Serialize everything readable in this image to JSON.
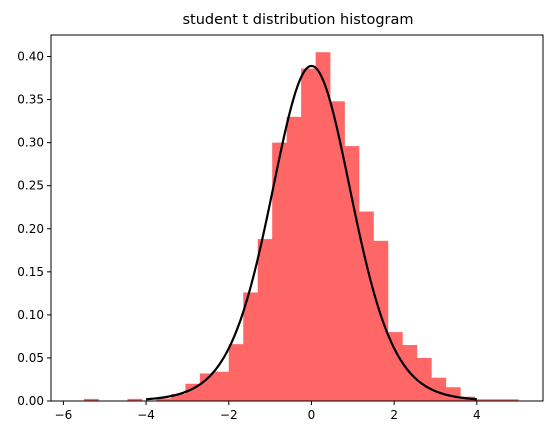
{
  "chart_data": {
    "type": "bar",
    "title": "student t distribution histogram",
    "xlabel": "",
    "ylabel": "",
    "xlim": [
      -6.3,
      5.6
    ],
    "ylim": [
      0,
      0.425
    ],
    "xticks": [
      -6,
      -4,
      -2,
      0,
      2,
      4
    ],
    "xtick_labels": [
      "−6",
      "−4",
      "−2",
      "0",
      "2",
      "4"
    ],
    "yticks": [
      0.0,
      0.05,
      0.1,
      0.15,
      0.2,
      0.25,
      0.3,
      0.35,
      0.4
    ],
    "ytick_labels": [
      "0.00",
      "0.05",
      "0.10",
      "0.15",
      "0.20",
      "0.25",
      "0.30",
      "0.35",
      "0.40"
    ],
    "grid": false,
    "histogram": {
      "color": "#ff6666",
      "bin_width": 0.35,
      "bins": [
        {
          "x0": -5.5,
          "x1": -5.15,
          "value": 0.0025
        },
        {
          "x0": -5.15,
          "x1": -4.8,
          "value": 0
        },
        {
          "x0": -4.8,
          "x1": -4.45,
          "value": 0
        },
        {
          "x0": -4.45,
          "x1": -4.1,
          "value": 0.0025
        },
        {
          "x0": -4.1,
          "x1": -3.75,
          "value": 0
        },
        {
          "x0": -3.75,
          "x1": -3.4,
          "value": 0.003
        },
        {
          "x0": -3.4,
          "x1": -3.05,
          "value": 0.008
        },
        {
          "x0": -3.05,
          "x1": -2.7,
          "value": 0.02
        },
        {
          "x0": -2.7,
          "x1": -2.35,
          "value": 0.032
        },
        {
          "x0": -2.35,
          "x1": -2.0,
          "value": 0.034
        },
        {
          "x0": -2.0,
          "x1": -1.65,
          "value": 0.066
        },
        {
          "x0": -1.65,
          "x1": -1.3,
          "value": 0.126
        },
        {
          "x0": -1.3,
          "x1": -0.95,
          "value": 0.188
        },
        {
          "x0": -0.95,
          "x1": -0.6,
          "value": 0.3
        },
        {
          "x0": -0.6,
          "x1": -0.25,
          "value": 0.33
        },
        {
          "x0": -0.25,
          "x1": 0.1,
          "value": 0.386
        },
        {
          "x0": 0.1,
          "x1": 0.45,
          "value": 0.405
        },
        {
          "x0": 0.45,
          "x1": 0.8,
          "value": 0.348
        },
        {
          "x0": 0.8,
          "x1": 1.15,
          "value": 0.296
        },
        {
          "x0": 1.15,
          "x1": 1.5,
          "value": 0.22
        },
        {
          "x0": 1.5,
          "x1": 1.85,
          "value": 0.186
        },
        {
          "x0": 1.85,
          "x1": 2.2,
          "value": 0.08
        },
        {
          "x0": 2.2,
          "x1": 2.55,
          "value": 0.065
        },
        {
          "x0": 2.55,
          "x1": 2.9,
          "value": 0.05
        },
        {
          "x0": 2.9,
          "x1": 3.25,
          "value": 0.027
        },
        {
          "x0": 3.25,
          "x1": 3.6,
          "value": 0.016
        },
        {
          "x0": 3.6,
          "x1": 3.95,
          "value": 0.005
        },
        {
          "x0": 3.95,
          "x1": 4.3,
          "value": 0.002
        },
        {
          "x0": 4.3,
          "x1": 4.65,
          "value": 0.002
        },
        {
          "x0": 4.65,
          "x1": 5.0,
          "value": 0.002
        }
      ]
    },
    "pdf_curve": {
      "color": "#000000",
      "x_range": [
        -4,
        4
      ],
      "degrees_of_freedom": 10
    }
  }
}
